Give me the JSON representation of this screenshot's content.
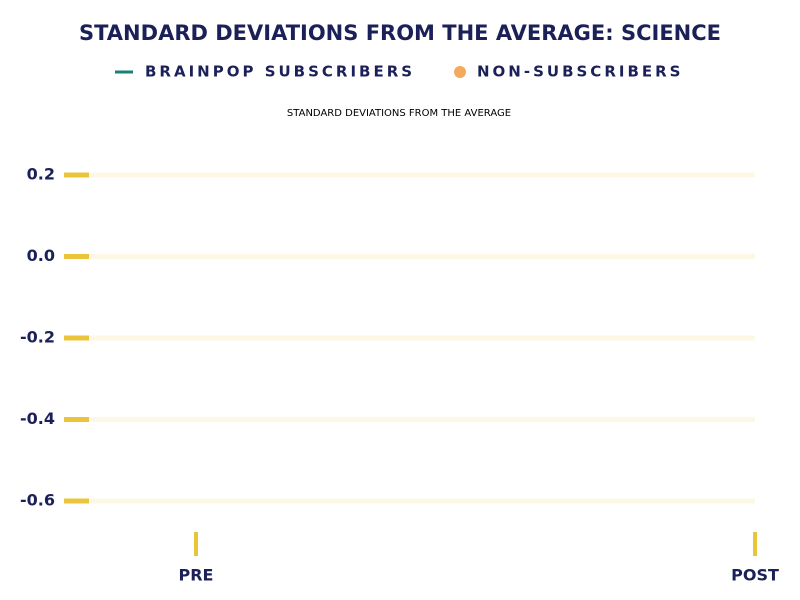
{
  "chart_data": {
    "type": "line",
    "title": "STANDARD DEVIATIONS FROM THE AVERAGE: SCIENCE",
    "y_label": "STANDARD DEVIATIONS FROM THE AVERAGE",
    "categories": [
      "PRE",
      "POST"
    ],
    "series": [
      {
        "name": "BRAINPOP SUBSCRIBERS",
        "color": "#17807b",
        "values": [
          null,
          null
        ]
      },
      {
        "name": "NON-SUBSCRIBERS",
        "color": "#f4a95e",
        "values": [
          null,
          null
        ]
      }
    ],
    "ylim": [
      -0.7,
      0.3
    ],
    "yticks": [
      0.2,
      {
        "value": 0,
        "label": "0.0"
      },
      -0.2,
      -0.4,
      -0.6
    ],
    "grid": true
  }
}
